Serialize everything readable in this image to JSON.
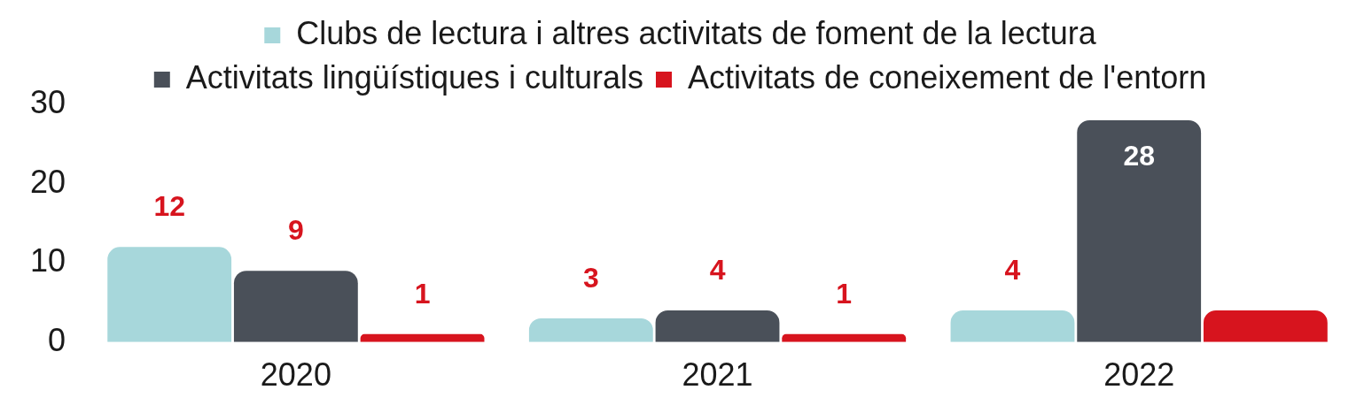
{
  "chart_data": {
    "type": "bar",
    "categories": [
      "2020",
      "2021",
      "2022"
    ],
    "series": [
      {
        "name": "Clubs de lectura i altres activitats de foment de la lectura",
        "color": "#a7d7db",
        "values": [
          12,
          3,
          4
        ],
        "value_labels": [
          "12",
          "3",
          "4"
        ]
      },
      {
        "name": "Activitats lingüístiques i culturals",
        "color": "#4a5059",
        "values": [
          9,
          4,
          28
        ],
        "value_labels": [
          "9",
          "4",
          "28"
        ]
      },
      {
        "name": "Activitats de coneixement de l'entorn",
        "color": "#d7141e",
        "values": [
          1,
          1,
          4
        ],
        "value_labels": [
          "1",
          "1",
          null
        ]
      }
    ],
    "ylim": [
      0,
      30
    ],
    "yticks": [
      0,
      10,
      20,
      30
    ],
    "legend": "top"
  }
}
